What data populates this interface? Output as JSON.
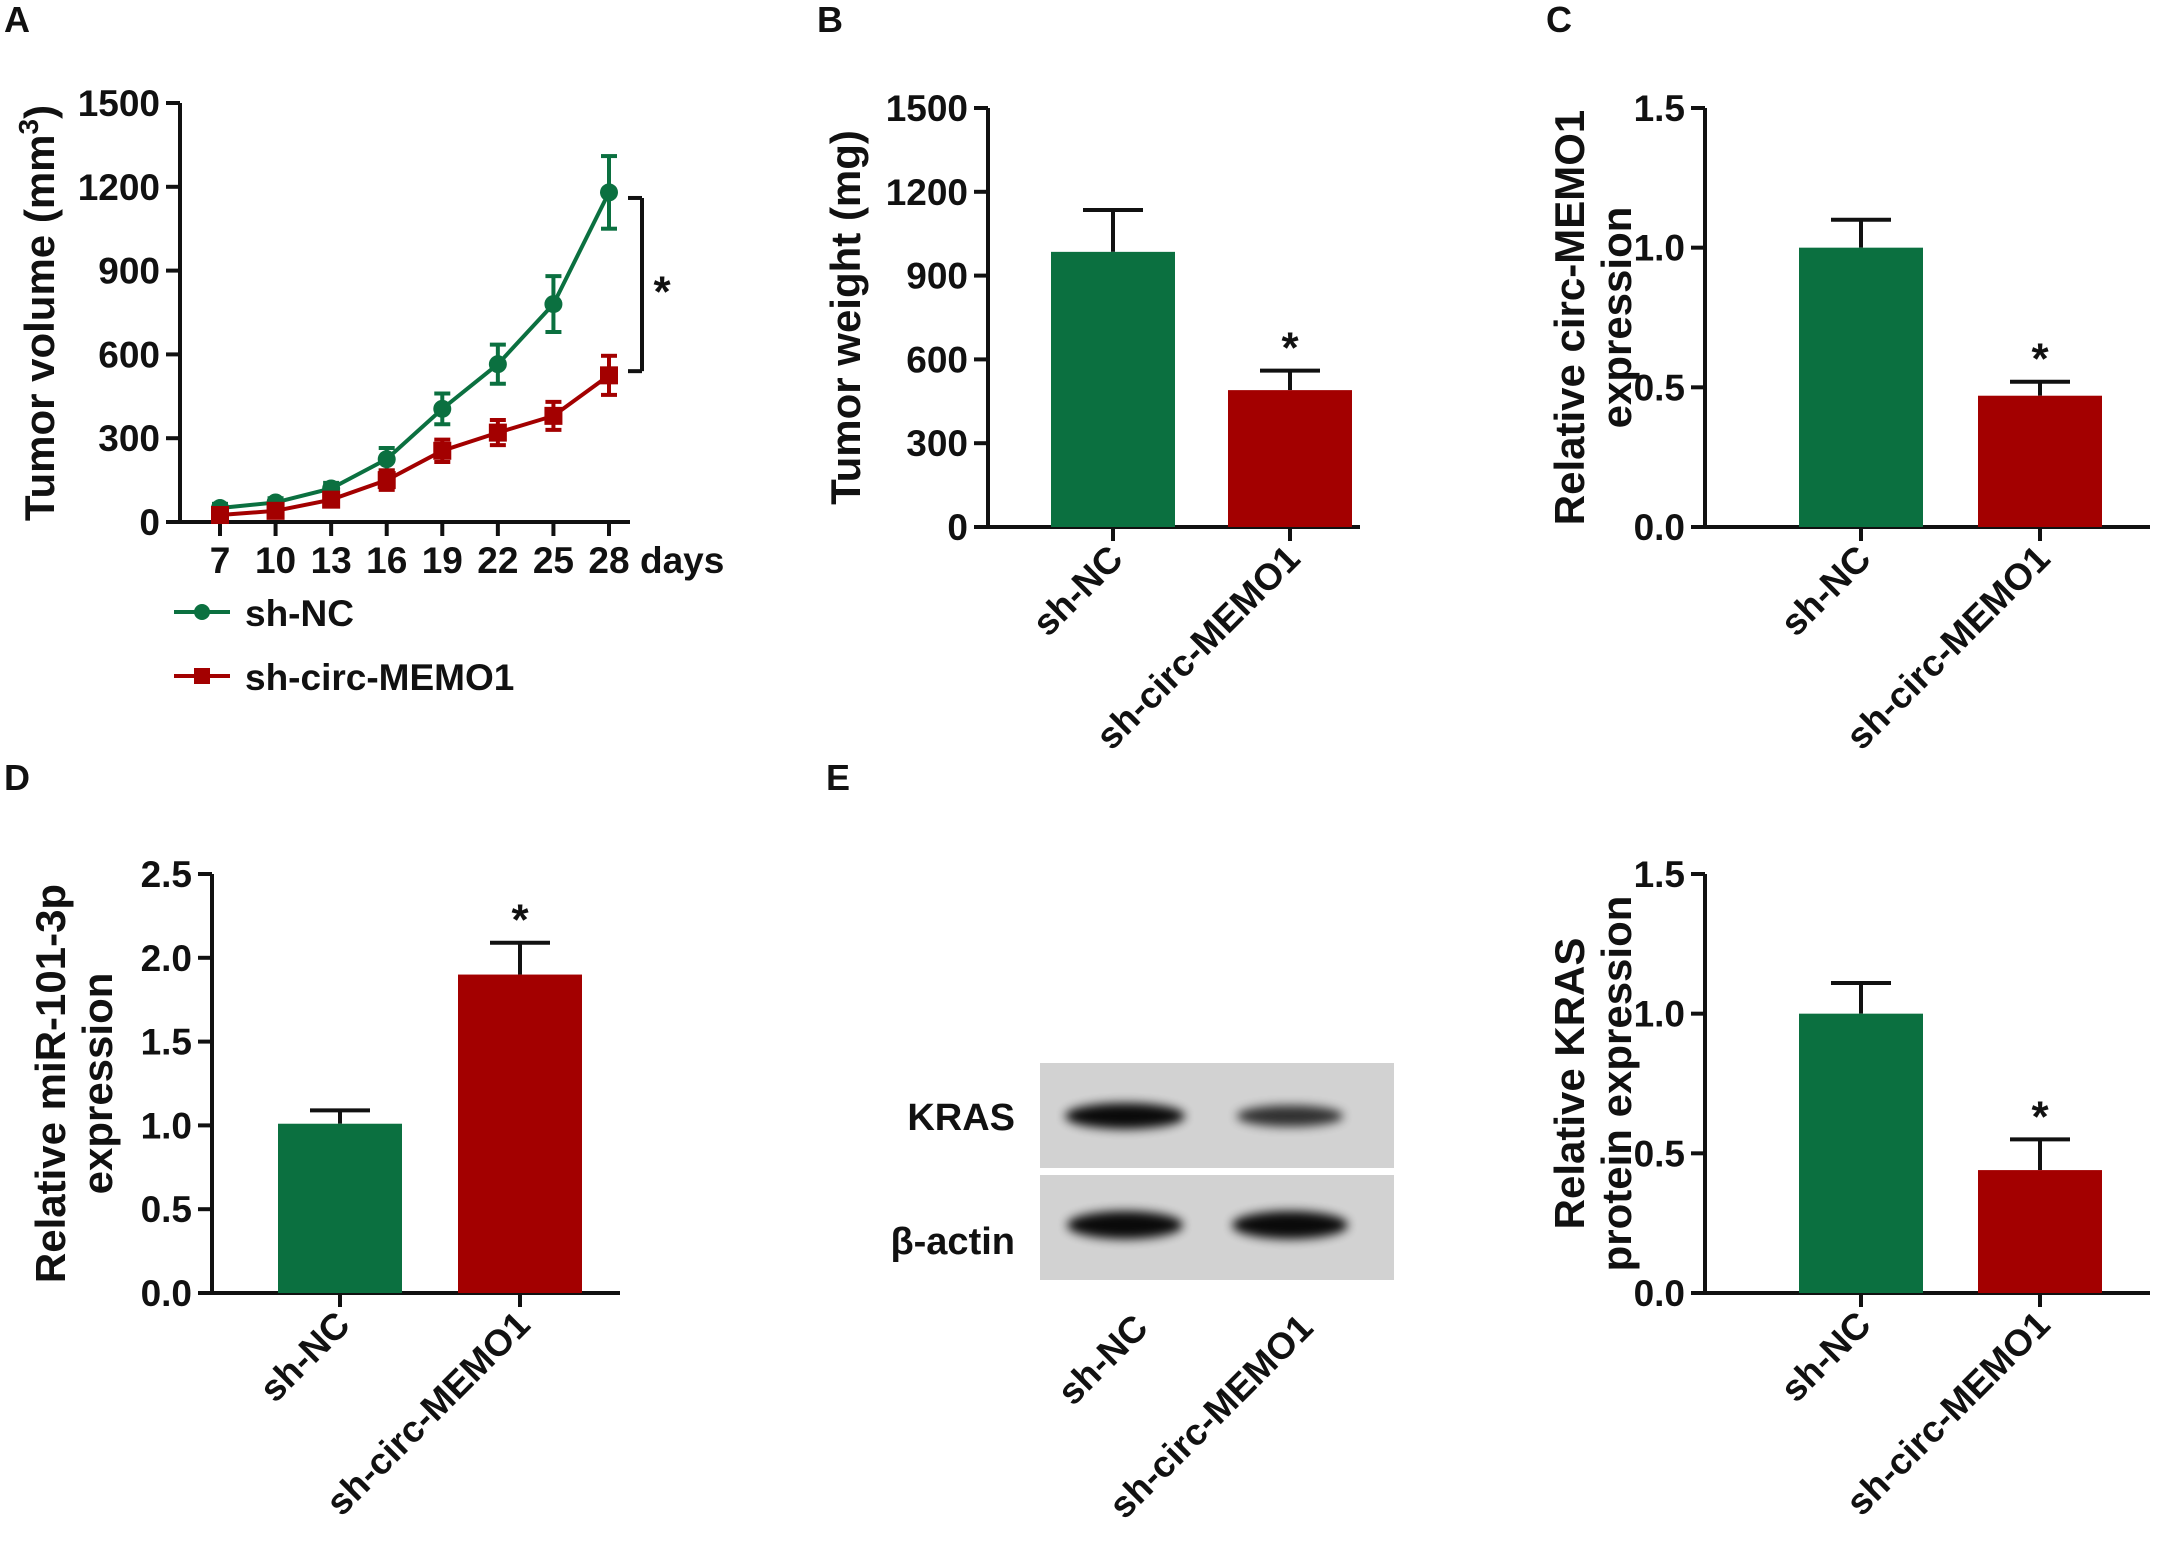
{
  "panels": {
    "A": "A",
    "B": "B",
    "C": "C",
    "D": "D",
    "E": "E"
  },
  "colors": {
    "sh_nc": "#0b7040",
    "sh_circ": "#a30000",
    "axis": "#111111"
  },
  "blot": {
    "kras_label": "KRAS",
    "actin_label": "β-actin",
    "kras_intensity": [
      1.0,
      0.55
    ],
    "actin_intensity": [
      1.0,
      1.0
    ]
  },
  "chart_data": [
    {
      "panel": "A",
      "type": "line",
      "xlabel": "days",
      "ylabel_main": "Tumor volume (mm",
      "ylabel_sup": "3",
      "ylabel_end": ")",
      "x": [
        7,
        10,
        13,
        16,
        19,
        22,
        25,
        28
      ],
      "x_tick_labels": [
        "7",
        "10",
        "13",
        "16",
        "19",
        "22",
        "25",
        "28"
      ],
      "ylim": [
        0,
        1500
      ],
      "y_ticks": [
        0,
        300,
        600,
        900,
        1200,
        1500
      ],
      "y_tick_labels": [
        "0",
        "300",
        "600",
        "900",
        "1200",
        "1500"
      ],
      "series": [
        {
          "name": "sh-NC",
          "marker": "circle",
          "values": [
            50,
            70,
            120,
            225,
            405,
            565,
            780,
            1180
          ],
          "errors": [
            15,
            15,
            20,
            40,
            55,
            70,
            100,
            130
          ]
        },
        {
          "name": "sh-circ-MEMO1",
          "marker": "square",
          "values": [
            25,
            40,
            80,
            150,
            255,
            320,
            380,
            525
          ],
          "errors": [
            10,
            12,
            20,
            35,
            40,
            45,
            50,
            70
          ]
        }
      ],
      "significance": "*",
      "significance_bracket": [
        540,
        1160
      ]
    },
    {
      "panel": "B",
      "type": "bar",
      "ylabel": "Tumor weight (mg)",
      "categories": [
        "sh-NC",
        "sh-circ-MEMO1"
      ],
      "values": [
        985,
        490
      ],
      "errors": [
        150,
        70
      ],
      "ylim": [
        0,
        1500
      ],
      "y_ticks": [
        0,
        300,
        600,
        900,
        1200,
        1500
      ],
      "y_tick_labels": [
        "0",
        "300",
        "600",
        "900",
        "1200",
        "1500"
      ],
      "significance": [
        "",
        "*"
      ]
    },
    {
      "panel": "C",
      "type": "bar",
      "ylabel_lines": [
        "Relative circ-MEMO1",
        "expression"
      ],
      "categories": [
        "sh-NC",
        "sh-circ-MEMO1"
      ],
      "values": [
        1.0,
        0.47
      ],
      "errors": [
        0.1,
        0.05
      ],
      "ylim": [
        0,
        1.5
      ],
      "y_ticks": [
        0,
        0.5,
        1.0,
        1.5
      ],
      "y_tick_labels": [
        "0.0",
        "0.5",
        "1.0",
        "1.5"
      ],
      "significance": [
        "",
        "*"
      ]
    },
    {
      "panel": "D",
      "type": "bar",
      "ylabel_lines": [
        "Relative miR-101-3p",
        "expression"
      ],
      "categories": [
        "sh-NC",
        "sh-circ-MEMO1"
      ],
      "values": [
        1.01,
        1.9
      ],
      "errors": [
        0.08,
        0.19
      ],
      "ylim": [
        0,
        2.5
      ],
      "y_ticks": [
        0,
        0.5,
        1.0,
        1.5,
        2.0,
        2.5
      ],
      "y_tick_labels": [
        "0.0",
        "0.5",
        "1.0",
        "1.5",
        "2.0",
        "2.5"
      ],
      "significance": [
        "",
        "*"
      ]
    },
    {
      "panel": "E",
      "type": "bar",
      "ylabel_lines": [
        "Relative KRAS",
        "protein expression"
      ],
      "categories": [
        "sh-NC",
        "sh-circ-MEMO1"
      ],
      "values": [
        1.0,
        0.44
      ],
      "errors": [
        0.11,
        0.11
      ],
      "ylim": [
        0,
        1.5
      ],
      "y_ticks": [
        0,
        0.5,
        1.0,
        1.5
      ],
      "y_tick_labels": [
        "0.0",
        "0.5",
        "1.0",
        "1.5"
      ],
      "significance": [
        "",
        "*"
      ]
    }
  ]
}
